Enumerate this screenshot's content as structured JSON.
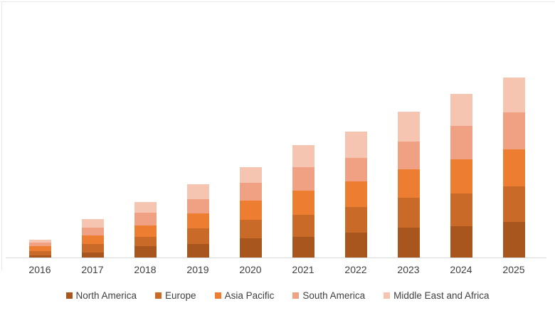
{
  "chart_data": {
    "type": "bar",
    "stacked": true,
    "title": "",
    "xlabel": "",
    "ylabel": "",
    "y_axis_visible": false,
    "grid": false,
    "legend_position": "bottom",
    "ylim": [
      0,
      280
    ],
    "axis_color": "#d9d9d9",
    "text_color": "#404040",
    "categories": [
      "2016",
      "2017",
      "2018",
      "2019",
      "2020",
      "2021",
      "2022",
      "2023",
      "2024",
      "2025"
    ],
    "series": [
      {
        "name": "North America",
        "color": "#a9561e",
        "values": [
          4,
          8,
          17,
          20,
          28,
          30,
          36,
          43,
          45,
          51
        ]
      },
      {
        "name": "Europe",
        "color": "#c96a28",
        "values": [
          6,
          12,
          13,
          22,
          26,
          31,
          36,
          42,
          46,
          50
        ]
      },
      {
        "name": "Asia Pacific",
        "color": "#ed7d31",
        "values": [
          7,
          12,
          16,
          21,
          27,
          34,
          36,
          40,
          48,
          52
        ]
      },
      {
        "name": "South America",
        "color": "#f1a183",
        "values": [
          5,
          11,
          18,
          20,
          25,
          33,
          33,
          39,
          47,
          52
        ]
      },
      {
        "name": "Middle East and Africa",
        "color": "#f5c5b2",
        "values": [
          4,
          12,
          15,
          21,
          22,
          31,
          37,
          42,
          45,
          49
        ]
      }
    ],
    "note": "No y-axis tick labels or gridlines are visible; values are relative units estimated from bar segment heights."
  }
}
